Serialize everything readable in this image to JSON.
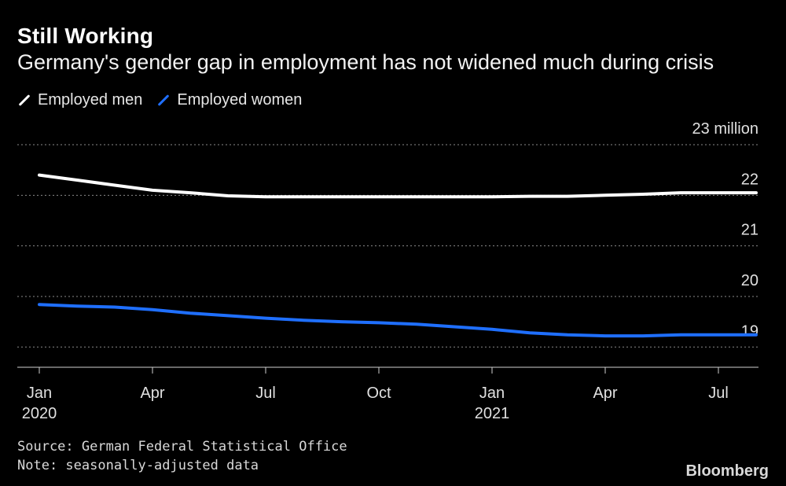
{
  "header": {
    "title": "Still Working",
    "subtitle": "Germany's gender gap in employment has not widened much during crisis"
  },
  "legend": {
    "items": [
      {
        "label": "Employed men",
        "color": "#ffffff"
      },
      {
        "label": "Employed women",
        "color": "#1f6fff"
      }
    ]
  },
  "footer": {
    "source": "Source: German Federal Statistical Office",
    "note": "Note: seasonally-adjusted data",
    "brand": "Bloomberg"
  },
  "chart_data": {
    "type": "line",
    "title": "Still Working",
    "subtitle": "Germany's gender gap in employment has not widened much during crisis",
    "xlabel": "",
    "ylabel": "",
    "x": [
      "2020-01",
      "2020-02",
      "2020-03",
      "2020-04",
      "2020-05",
      "2020-06",
      "2020-07",
      "2020-08",
      "2020-09",
      "2020-10",
      "2020-11",
      "2020-12",
      "2021-01",
      "2021-02",
      "2021-03",
      "2021-04",
      "2021-05",
      "2021-06",
      "2021-07",
      "2021-08"
    ],
    "x_ticks": [
      {
        "label": "Jan",
        "sub": "2020",
        "month": 0
      },
      {
        "label": "Apr",
        "sub": "",
        "month": 3
      },
      {
        "label": "Jul",
        "sub": "",
        "month": 6
      },
      {
        "label": "Oct",
        "sub": "",
        "month": 9
      },
      {
        "label": "Jan",
        "sub": "2021",
        "month": 12
      },
      {
        "label": "Apr",
        "sub": "",
        "month": 15
      },
      {
        "label": "Jul",
        "sub": "",
        "month": 18
      }
    ],
    "y_ticks": [
      {
        "value": 23,
        "label": "23 million"
      },
      {
        "value": 22,
        "label": "22"
      },
      {
        "value": 21,
        "label": "21"
      },
      {
        "value": 20,
        "label": "20"
      },
      {
        "value": 19,
        "label": "19"
      }
    ],
    "ylim": [
      18.6,
      23
    ],
    "grid": true,
    "legend_position": "top-left",
    "series": [
      {
        "name": "Employed men",
        "color": "#ffffff",
        "values": [
          22.4,
          22.3,
          22.2,
          22.1,
          22.05,
          21.99,
          21.97,
          21.97,
          21.97,
          21.97,
          21.97,
          21.97,
          21.97,
          21.98,
          21.98,
          22.0,
          22.02,
          22.05,
          22.05,
          22.05
        ]
      },
      {
        "name": "Employed women",
        "color": "#1f6fff",
        "values": [
          19.84,
          19.81,
          19.79,
          19.74,
          19.67,
          19.62,
          19.57,
          19.53,
          19.5,
          19.48,
          19.45,
          19.4,
          19.35,
          19.28,
          19.24,
          19.22,
          19.22,
          19.24,
          19.24,
          19.24
        ]
      }
    ]
  }
}
